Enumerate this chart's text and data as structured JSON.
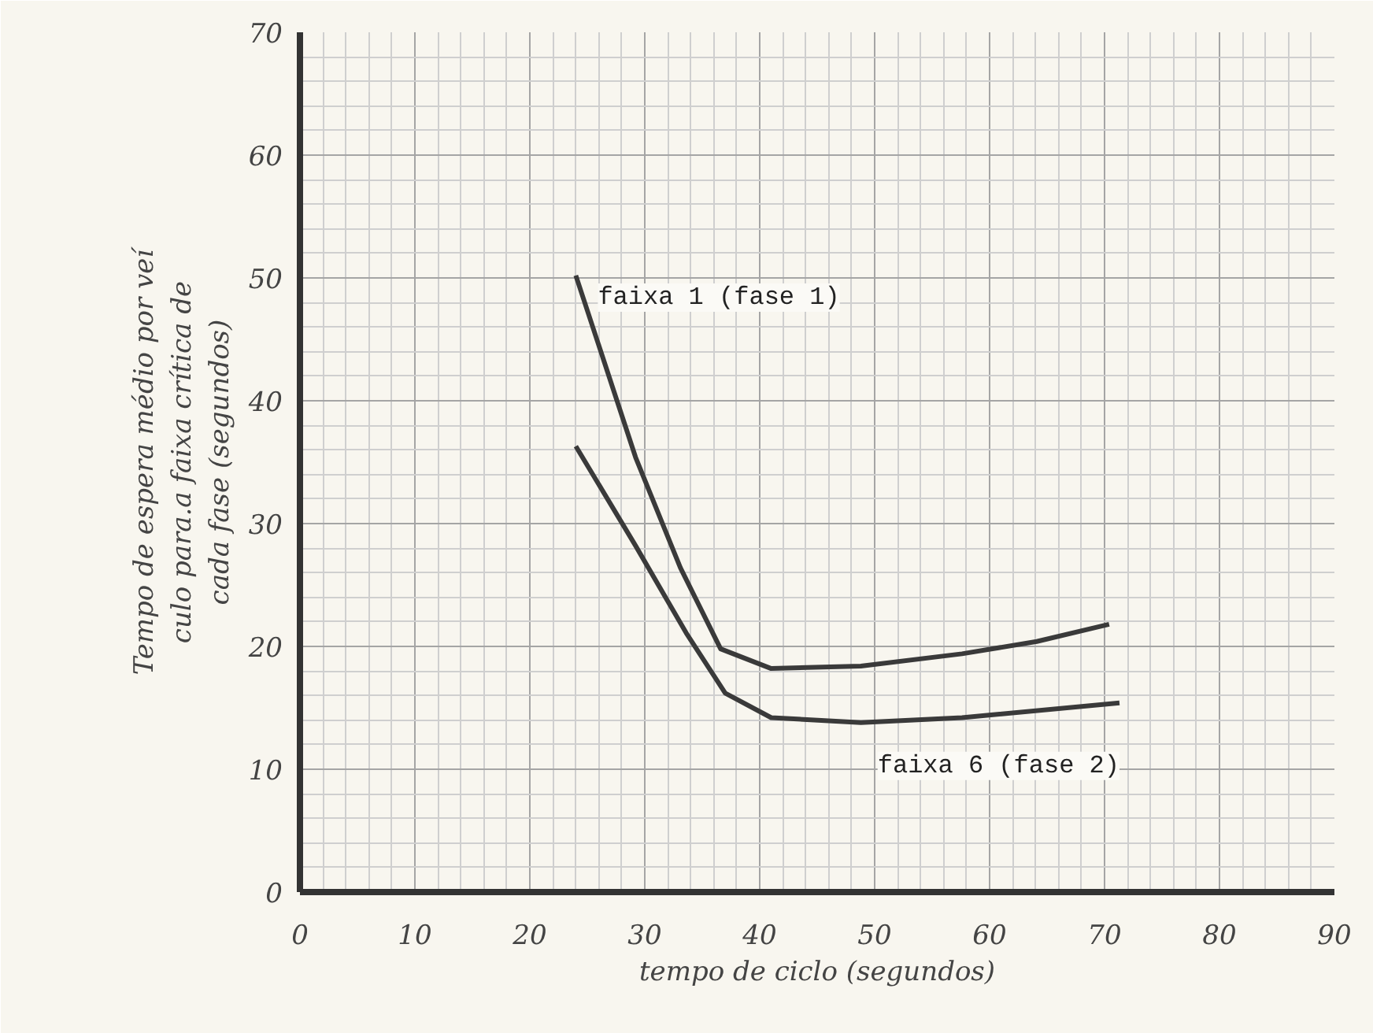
{
  "chart_data": {
    "type": "line",
    "xlabel": "tempo de ciclo (segundos)",
    "ylabel": "Tempo de espera médio por veí\nculo para.a faixa crítica de\ncada fase (segundos)",
    "series": [
      {
        "name": "faixa 1 (fase 1)",
        "color": "#3a3a3a",
        "x": [
          24,
          29.2,
          33.1,
          36.6,
          41,
          48.8,
          57.6,
          64.1,
          70.4
        ],
        "values": [
          50.2,
          35.4,
          26.4,
          19.8,
          18.2,
          18.4,
          19.4,
          20.4,
          21.8
        ]
      },
      {
        "name": "faixa 6 (fase 2)",
        "color": "#3a3a3a",
        "x": [
          24,
          29.2,
          33.6,
          37,
          41,
          48.8,
          57.6,
          71.3
        ],
        "values": [
          36.3,
          28.2,
          21.1,
          16.2,
          14.2,
          13.8,
          14.2,
          15.4
        ]
      }
    ],
    "xlim": [
      0,
      90
    ],
    "ylim": [
      0,
      70
    ],
    "xticks": [
      0,
      10,
      20,
      30,
      40,
      50,
      60,
      70,
      80,
      90
    ],
    "yticks": [
      0,
      10,
      20,
      30,
      40,
      50,
      60,
      70
    ],
    "grid": true,
    "marker": "none",
    "line_style": "solid"
  }
}
